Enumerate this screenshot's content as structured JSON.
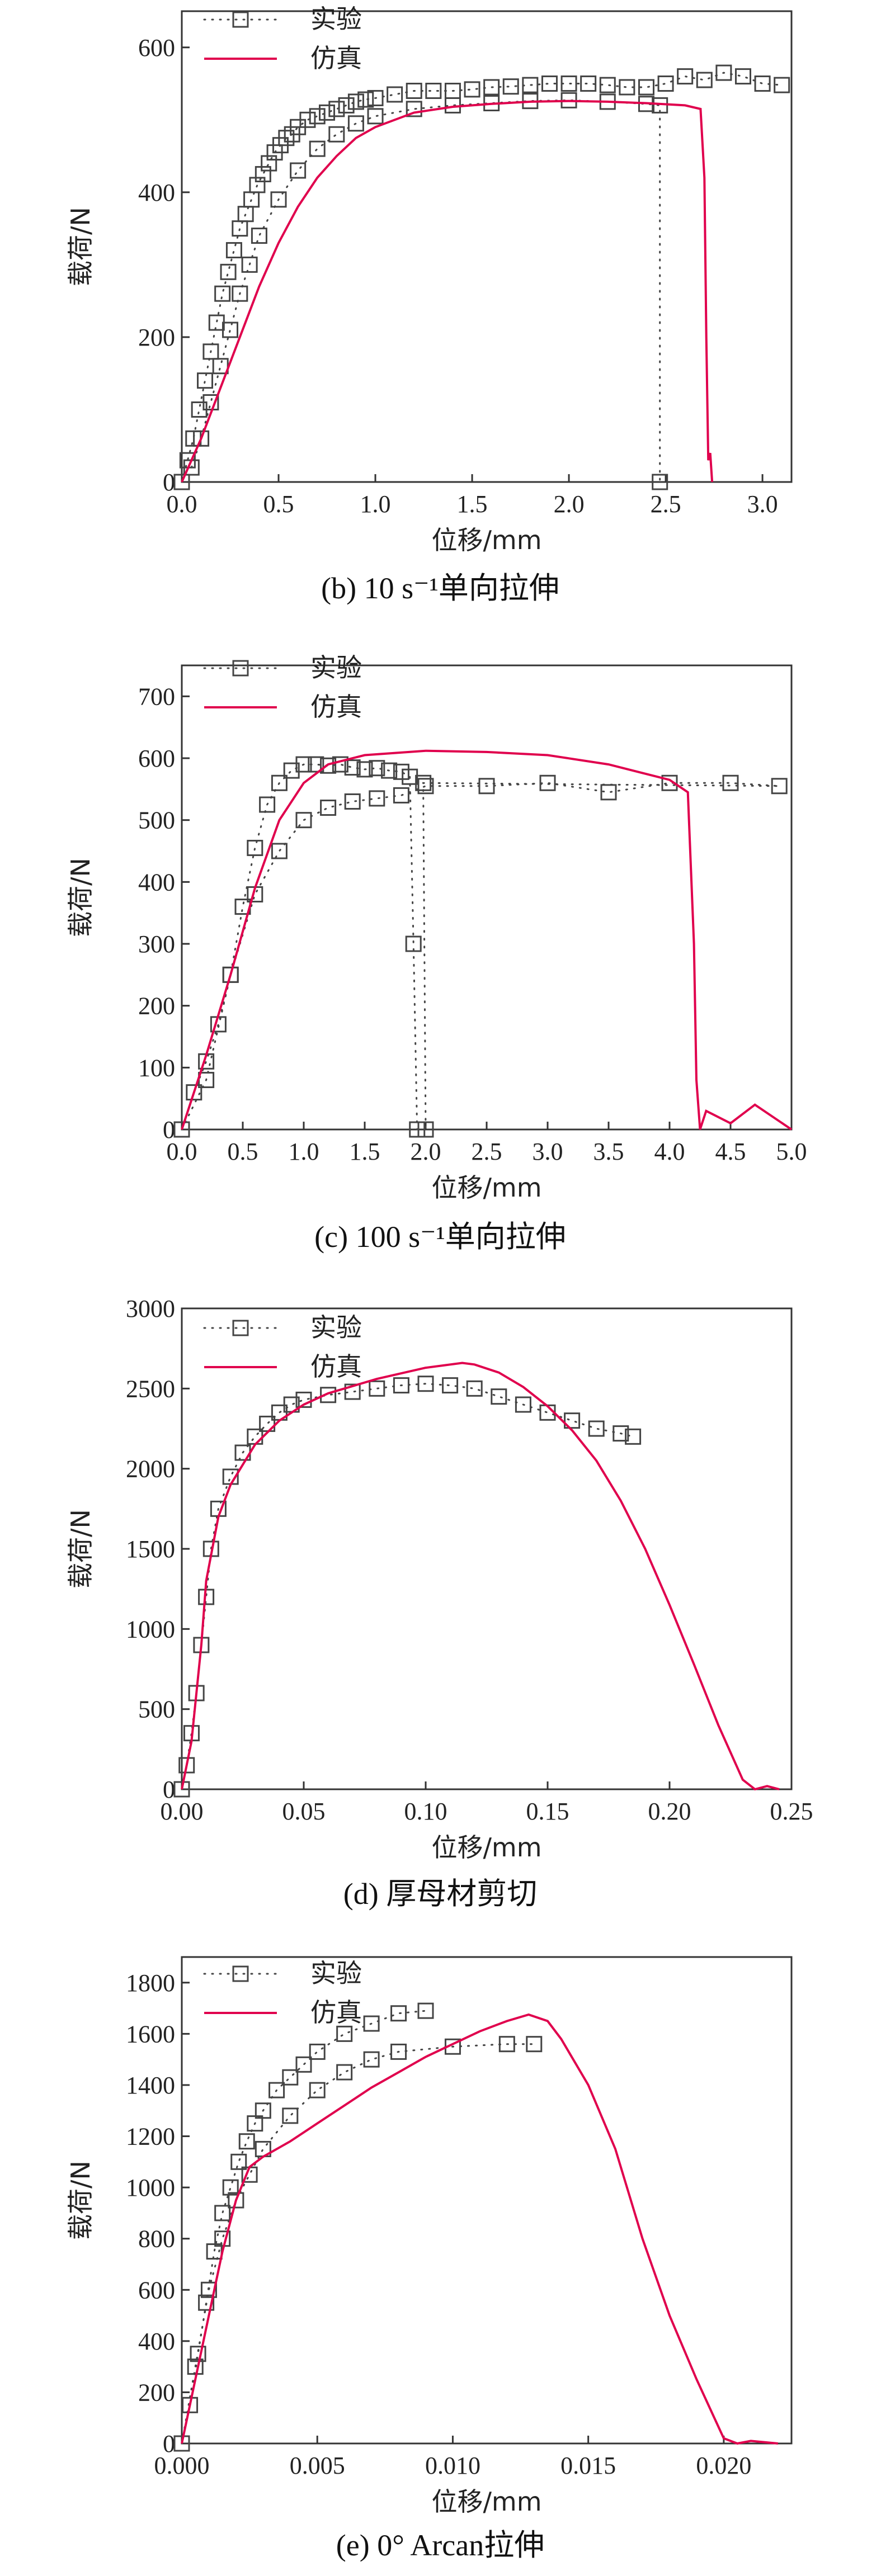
{
  "colors": {
    "experiment": "#444444",
    "simulation": "#e0004d",
    "axis": "#333333"
  },
  "legend": {
    "experiment": "实验",
    "simulation": "仿真"
  },
  "chart_data": [
    {
      "type": "scatter",
      "caption": "(b) 10 s⁻¹单向拉伸",
      "xlabel": "位移/mm",
      "ylabel": "载荷/N",
      "xlim": [
        0,
        3.15
      ],
      "ylim": [
        0,
        650
      ],
      "xticks": [
        "0.0",
        "0.5",
        "1.0",
        "1.5",
        "2.0",
        "2.5",
        "3.0"
      ],
      "xtick_values": [
        0,
        0.5,
        1.0,
        1.5,
        2.0,
        2.5,
        3.0
      ],
      "yticks": [
        "0",
        "200",
        "400",
        "600"
      ],
      "ytick_values": [
        0,
        200,
        400,
        600
      ],
      "series": [
        {
          "name": "实验",
          "style": "dotted-square",
          "x": [
            0.0,
            0.03,
            0.06,
            0.09,
            0.12,
            0.15,
            0.18,
            0.21,
            0.24,
            0.27,
            0.3,
            0.33,
            0.36,
            0.39,
            0.42,
            0.45,
            0.48,
            0.51,
            0.54,
            0.57,
            0.6,
            0.65,
            0.7,
            0.75,
            0.8,
            0.85,
            0.9,
            0.95,
            1.0,
            1.1,
            1.2,
            1.3,
            1.4,
            1.5,
            1.6,
            1.7,
            1.8,
            1.9,
            2.0,
            2.1,
            2.2,
            2.3,
            2.4,
            2.5,
            2.6,
            2.7,
            2.8,
            2.9,
            3.0,
            3.1
          ],
          "y": [
            0,
            30,
            60,
            100,
            140,
            180,
            220,
            260,
            290,
            320,
            350,
            370,
            390,
            410,
            425,
            440,
            455,
            465,
            475,
            480,
            490,
            500,
            505,
            510,
            515,
            520,
            525,
            528,
            530,
            535,
            540,
            540,
            540,
            542,
            545,
            546,
            548,
            550,
            550,
            550,
            548,
            545,
            545,
            550,
            560,
            555,
            565,
            560,
            550,
            548
          ]
        },
        {
          "name": "实验",
          "style": "dotted-square",
          "x": [
            0.05,
            0.1,
            0.15,
            0.2,
            0.25,
            0.3,
            0.35,
            0.4,
            0.5,
            0.6,
            0.7,
            0.8,
            0.9,
            1.0,
            1.2,
            1.4,
            1.6,
            1.8,
            2.0,
            2.2,
            2.4,
            2.47,
            2.47
          ],
          "y": [
            20,
            60,
            110,
            160,
            210,
            260,
            300,
            340,
            390,
            430,
            460,
            480,
            495,
            505,
            515,
            520,
            523,
            526,
            527,
            525,
            522,
            520,
            0
          ]
        },
        {
          "name": "仿真",
          "style": "solid",
          "x": [
            0.0,
            0.1,
            0.2,
            0.3,
            0.4,
            0.5,
            0.6,
            0.7,
            0.8,
            0.9,
            1.0,
            1.2,
            1.4,
            1.6,
            1.8,
            2.0,
            2.2,
            2.4,
            2.6,
            2.68,
            2.7,
            2.71,
            2.72,
            2.73,
            2.74
          ],
          "y": [
            0,
            60,
            130,
            200,
            270,
            330,
            380,
            420,
            450,
            475,
            490,
            510,
            518,
            522,
            525,
            526,
            525,
            523,
            520,
            515,
            420,
            200,
            30,
            40,
            0
          ]
        }
      ]
    },
    {
      "type": "scatter",
      "caption": "(c) 100 s⁻¹单向拉伸",
      "xlabel": "位移/mm",
      "ylabel": "载荷/N",
      "xlim": [
        0,
        5.0
      ],
      "ylim": [
        0,
        750
      ],
      "xticks": [
        "0.0",
        "0.5",
        "1.0",
        "1.5",
        "2.0",
        "2.5",
        "3.0",
        "3.5",
        "4.0",
        "4.5",
        "5.0"
      ],
      "xtick_values": [
        0,
        0.5,
        1.0,
        1.5,
        2.0,
        2.5,
        3.0,
        3.5,
        4.0,
        4.5,
        5.0
      ],
      "yticks": [
        "0",
        "100",
        "200",
        "300",
        "400",
        "500",
        "600",
        "700"
      ],
      "ytick_values": [
        0,
        100,
        200,
        300,
        400,
        500,
        600,
        700
      ],
      "series": [
        {
          "name": "实验",
          "style": "dotted-square",
          "x": [
            0.0,
            0.1,
            0.2,
            0.3,
            0.4,
            0.5,
            0.6,
            0.7,
            0.8,
            0.9,
            1.0,
            1.1,
            1.2,
            1.3,
            1.4,
            1.5,
            1.6,
            1.7,
            1.8,
            1.87,
            1.9,
            1.93
          ],
          "y": [
            0,
            60,
            110,
            170,
            250,
            360,
            455,
            525,
            560,
            580,
            590,
            590,
            588,
            590,
            585,
            582,
            584,
            580,
            578,
            570,
            300,
            0
          ]
        },
        {
          "name": "实验",
          "style": "dotted-square",
          "x": [
            0.0,
            0.2,
            0.4,
            0.6,
            0.8,
            1.0,
            1.2,
            1.4,
            1.6,
            1.8,
            2.0,
            2.5,
            3.0,
            3.5,
            4.0,
            4.5,
            4.9,
            1.98,
            2.0
          ],
          "y": [
            0,
            80,
            250,
            380,
            450,
            500,
            520,
            530,
            535,
            540,
            555,
            555,
            560,
            545,
            560,
            560,
            555,
            560,
            0
          ]
        },
        {
          "name": "仿真",
          "style": "solid",
          "x": [
            0.0,
            0.2,
            0.4,
            0.6,
            0.8,
            1.0,
            1.2,
            1.5,
            2.0,
            2.5,
            3.0,
            3.5,
            4.0,
            4.15,
            4.2,
            4.22,
            4.25,
            4.3,
            4.5,
            4.7,
            5.0
          ],
          "y": [
            0,
            120,
            250,
            390,
            500,
            560,
            590,
            605,
            612,
            610,
            605,
            590,
            565,
            545,
            300,
            80,
            0,
            30,
            10,
            40,
            0
          ]
        }
      ]
    },
    {
      "type": "scatter",
      "caption": "(d) 厚母材剪切",
      "xlabel": "位移/mm",
      "ylabel": "载荷/N",
      "xlim": [
        0,
        0.25
      ],
      "ylim": [
        0,
        3000
      ],
      "xticks": [
        "0.00",
        "0.05",
        "0.10",
        "0.15",
        "0.20",
        "0.25"
      ],
      "xtick_values": [
        0,
        0.05,
        0.1,
        0.15,
        0.2,
        0.25
      ],
      "yticks": [
        "0",
        "500",
        "1000",
        "1500",
        "2000",
        "2500",
        "3000"
      ],
      "ytick_values": [
        0,
        500,
        1000,
        1500,
        2000,
        2500,
        3000
      ],
      "series": [
        {
          "name": "实验",
          "style": "dotted-square",
          "x": [
            0.0,
            0.002,
            0.004,
            0.006,
            0.008,
            0.01,
            0.012,
            0.015,
            0.02,
            0.025,
            0.03,
            0.035,
            0.04,
            0.045,
            0.05,
            0.06,
            0.07,
            0.08,
            0.09,
            0.1,
            0.11,
            0.12,
            0.13,
            0.14,
            0.15,
            0.16,
            0.17,
            0.18,
            0.185
          ],
          "y": [
            0,
            150,
            350,
            600,
            900,
            1200,
            1500,
            1750,
            1950,
            2100,
            2200,
            2280,
            2350,
            2400,
            2430,
            2460,
            2480,
            2500,
            2520,
            2530,
            2520,
            2500,
            2450,
            2400,
            2350,
            2300,
            2250,
            2220,
            2200
          ]
        },
        {
          "name": "仿真",
          "style": "solid",
          "x": [
            0.0,
            0.004,
            0.008,
            0.01,
            0.015,
            0.02,
            0.03,
            0.04,
            0.05,
            0.06,
            0.08,
            0.1,
            0.115,
            0.12,
            0.13,
            0.14,
            0.15,
            0.16,
            0.17,
            0.18,
            0.19,
            0.2,
            0.21,
            0.22,
            0.23,
            0.235,
            0.24,
            0.245
          ],
          "y": [
            0,
            300,
            900,
            1300,
            1700,
            1900,
            2150,
            2300,
            2400,
            2470,
            2560,
            2630,
            2660,
            2650,
            2600,
            2510,
            2390,
            2240,
            2050,
            1800,
            1500,
            1150,
            780,
            400,
            60,
            0,
            20,
            0
          ]
        }
      ]
    },
    {
      "type": "scatter",
      "caption": "(e) 0° Arcan拉伸",
      "xlabel": "位移/mm",
      "ylabel": "载荷/N",
      "xlim": [
        0,
        0.0225
      ],
      "ylim": [
        0,
        1900
      ],
      "xticks": [
        "0.000",
        "0.005",
        "0.010",
        "0.015",
        "0.020"
      ],
      "xtick_values": [
        0,
        0.005,
        0.01,
        0.015,
        0.02
      ],
      "yticks": [
        "0",
        "200",
        "400",
        "600",
        "800",
        "1000",
        "1200",
        "1400",
        "1600",
        "1800"
      ],
      "ytick_values": [
        0,
        200,
        400,
        600,
        800,
        1000,
        1200,
        1400,
        1600,
        1800
      ],
      "series": [
        {
          "name": "实验",
          "style": "dotted-square",
          "x": [
            0.0,
            0.0003,
            0.0006,
            0.0009,
            0.0012,
            0.0015,
            0.0018,
            0.0021,
            0.0024,
            0.0027,
            0.003,
            0.0035,
            0.004,
            0.0045,
            0.005,
            0.006,
            0.007,
            0.008,
            0.009
          ],
          "y": [
            0,
            150,
            350,
            550,
            750,
            900,
            1000,
            1100,
            1180,
            1250,
            1300,
            1380,
            1430,
            1480,
            1530,
            1600,
            1640,
            1680,
            1690
          ]
        },
        {
          "name": "实验",
          "style": "dotted-square",
          "x": [
            0.0,
            0.0005,
            0.001,
            0.0015,
            0.002,
            0.0025,
            0.003,
            0.004,
            0.005,
            0.006,
            0.007,
            0.008,
            0.01,
            0.012,
            0.013
          ],
          "y": [
            0,
            300,
            600,
            800,
            950,
            1050,
            1150,
            1280,
            1380,
            1450,
            1500,
            1530,
            1550,
            1560,
            1560
          ]
        },
        {
          "name": "仿真",
          "style": "solid",
          "x": [
            0.0,
            0.0005,
            0.001,
            0.0015,
            0.002,
            0.0025,
            0.003,
            0.004,
            0.005,
            0.006,
            0.007,
            0.008,
            0.009,
            0.01,
            0.011,
            0.012,
            0.0128,
            0.0135,
            0.014,
            0.015,
            0.016,
            0.017,
            0.018,
            0.019,
            0.02,
            0.0205,
            0.021,
            0.022
          ],
          "y": [
            0,
            250,
            500,
            750,
            950,
            1080,
            1120,
            1180,
            1250,
            1320,
            1390,
            1450,
            1510,
            1560,
            1610,
            1650,
            1675,
            1650,
            1580,
            1400,
            1150,
            800,
            500,
            250,
            20,
            0,
            10,
            0
          ]
        }
      ]
    }
  ]
}
